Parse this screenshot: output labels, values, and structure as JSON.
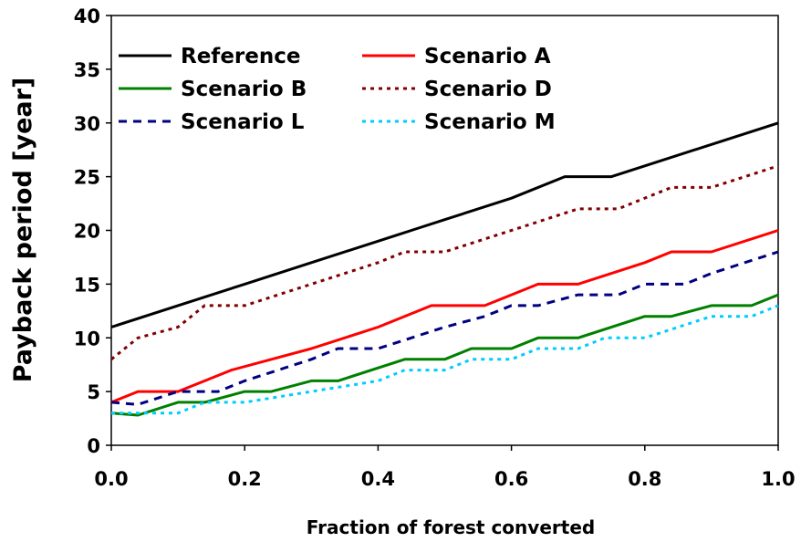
{
  "chart_data": {
    "type": "line",
    "title": "",
    "xlabel": "Fraction of forest converted",
    "ylabel": "Payback period [year]",
    "xlim": [
      0,
      1
    ],
    "ylim": [
      0,
      40
    ],
    "xticks": [
      "0.0",
      "0.2",
      "0.4",
      "0.6",
      "0.8",
      "1.0"
    ],
    "yticks": [
      "0",
      "5",
      "10",
      "15",
      "20",
      "25",
      "30",
      "35",
      "40"
    ],
    "grid": false,
    "legend_position": "top-left, inside plot, two columns",
    "series": [
      {
        "name": "Reference",
        "color": "#000000",
        "dash": "solid",
        "x": [
          0.0,
          0.1,
          0.2,
          0.3,
          0.4,
          0.45,
          0.5,
          0.6,
          0.68,
          0.7,
          0.75,
          0.8,
          0.9,
          1.0
        ],
        "y": [
          11,
          13,
          15,
          17,
          19,
          20,
          21,
          23,
          25,
          25,
          25,
          26,
          28,
          30
        ]
      },
      {
        "name": "Scenario A",
        "color": "#ff0000",
        "dash": "solid",
        "x": [
          0.0,
          0.04,
          0.1,
          0.18,
          0.3,
          0.4,
          0.48,
          0.5,
          0.56,
          0.64,
          0.7,
          0.8,
          0.84,
          0.9,
          1.0
        ],
        "y": [
          4,
          5,
          5,
          7,
          9,
          11,
          13,
          13,
          13,
          15,
          15,
          17,
          18,
          18,
          20
        ]
      },
      {
        "name": "Scenario B",
        "color": "#008000",
        "dash": "solid",
        "x": [
          0.0,
          0.04,
          0.1,
          0.14,
          0.2,
          0.24,
          0.3,
          0.34,
          0.44,
          0.5,
          0.54,
          0.6,
          0.64,
          0.7,
          0.8,
          0.84,
          0.9,
          0.96,
          1.0
        ],
        "y": [
          3,
          2.8,
          4,
          4,
          5,
          5,
          6,
          6,
          8,
          8,
          9,
          9,
          10,
          10,
          12,
          12,
          13,
          13,
          14
        ]
      },
      {
        "name": "Scenario D",
        "color": "#800000",
        "dash": "dotted",
        "x": [
          0.0,
          0.04,
          0.1,
          0.14,
          0.2,
          0.3,
          0.4,
          0.44,
          0.5,
          0.6,
          0.7,
          0.76,
          0.84,
          0.9,
          1.0
        ],
        "y": [
          8,
          10,
          11,
          13,
          13,
          15,
          17,
          18,
          18,
          20,
          22,
          22,
          24,
          24,
          26
        ]
      },
      {
        "name": "Scenario L",
        "color": "#000080",
        "dash": "dashed",
        "x": [
          0.0,
          0.04,
          0.1,
          0.16,
          0.2,
          0.3,
          0.34,
          0.4,
          0.5,
          0.56,
          0.6,
          0.64,
          0.7,
          0.76,
          0.8,
          0.86,
          0.9,
          1.0
        ],
        "y": [
          4,
          3.8,
          5,
          5,
          6,
          8,
          9,
          9,
          11,
          12,
          13,
          13,
          14,
          14,
          15,
          15,
          16,
          18
        ]
      },
      {
        "name": "Scenario M",
        "color": "#00ccff",
        "dash": "dotted",
        "x": [
          0.0,
          0.1,
          0.14,
          0.2,
          0.3,
          0.4,
          0.44,
          0.5,
          0.54,
          0.6,
          0.64,
          0.7,
          0.74,
          0.8,
          0.9,
          0.96,
          1.0
        ],
        "y": [
          3,
          3,
          4,
          4,
          5,
          6,
          7,
          7,
          8,
          8,
          9,
          9,
          10,
          10,
          12,
          12,
          13
        ]
      }
    ]
  }
}
